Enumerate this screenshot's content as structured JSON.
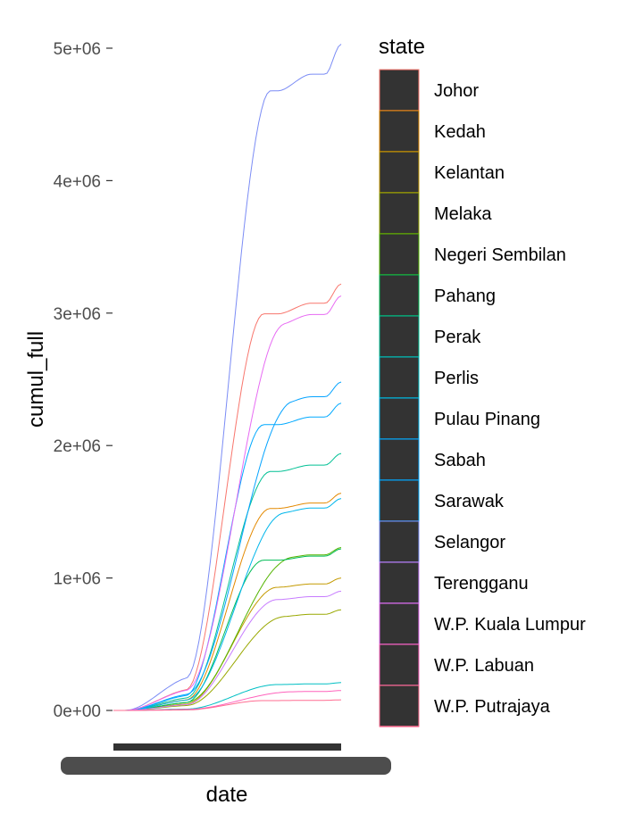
{
  "chart_data": {
    "type": "line",
    "xlabel": "date",
    "ylabel": "cumul_full",
    "ylim": [
      0,
      5000000
    ],
    "yticks": [
      0,
      1000000,
      2000000,
      3000000,
      4000000,
      5000000
    ],
    "yticklabels": [
      "0e+00",
      "1e+06",
      "2e+06",
      "3e+06",
      "4e+06",
      "5e+06"
    ],
    "grid": false,
    "legend_position": "right",
    "legend_title": "state",
    "series": [
      {
        "name": "Johor",
        "color": "#F8766D",
        "final": 3220000
      },
      {
        "name": "Kedah",
        "color": "#E38900",
        "final": 1640000
      },
      {
        "name": "Kelantan",
        "color": "#C49A00",
        "final": 1000000
      },
      {
        "name": "Melaka",
        "color": "#99A800",
        "final": 760000
      },
      {
        "name": "Negeri Sembilan",
        "color": "#53B400",
        "final": 1230000
      },
      {
        "name": "Pahang",
        "color": "#00BC56",
        "final": 1220000
      },
      {
        "name": "Perak",
        "color": "#00C094",
        "final": 1940000
      },
      {
        "name": "Perlis",
        "color": "#00BFC4",
        "final": 210000
      },
      {
        "name": "Pulau Pinang",
        "color": "#00B6EB",
        "final": 1600000
      },
      {
        "name": "Sabah",
        "color": "#06A4FF",
        "final": 2480000
      },
      {
        "name": "Sarawak",
        "color": "#00A9FF",
        "final": 2320000
      },
      {
        "name": "Selangor",
        "color": "#7B8CF5",
        "final": 5030000
      },
      {
        "name": "Terengganu",
        "color": "#C77CFF",
        "final": 900000
      },
      {
        "name": "W.P. Kuala Lumpur",
        "color": "#E76BF3",
        "final": 3130000
      },
      {
        "name": "W.P. Labuan",
        "color": "#FF62BC",
        "final": 150000
      },
      {
        "name": "W.P. Putrajaya",
        "color": "#FF6C91",
        "final": 80000
      }
    ]
  }
}
